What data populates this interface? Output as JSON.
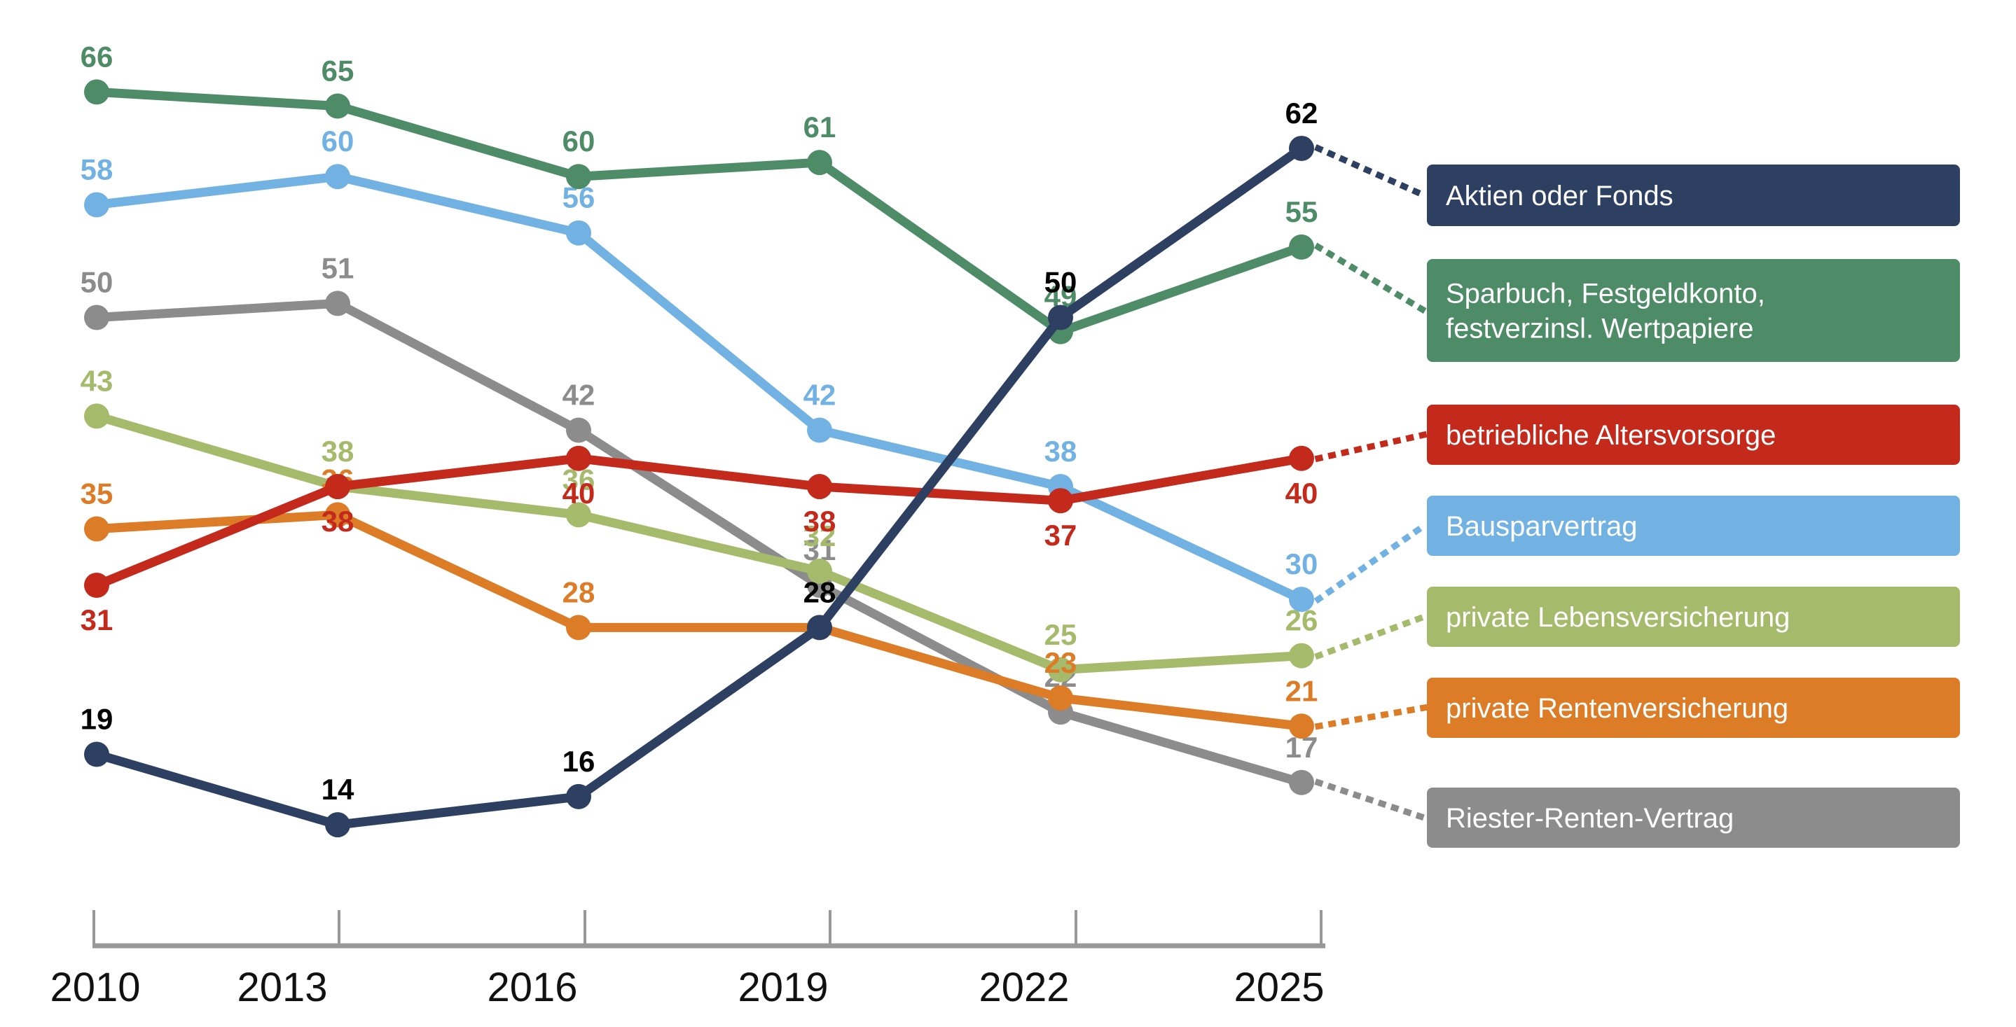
{
  "background": "#ffffff",
  "axis": {
    "years": [
      "2010",
      "2013",
      "2016",
      "2019",
      "2022",
      "2025"
    ],
    "line_color": "#989898",
    "label_color": "#111111"
  },
  "chart_data": {
    "type": "line",
    "x_categories": [
      "2010",
      "2013",
      "2016",
      "2019",
      "2022",
      "2025"
    ],
    "ylim": [
      0,
      72
    ],
    "grid": false,
    "legend_position": "right",
    "series": [
      {
        "id": "aktien",
        "name": "Aktien oder Fonds",
        "legend_lines": [
          "Aktien oder Fonds"
        ],
        "color": "#2e4062",
        "value_label_color": "#000000",
        "values": [
          19,
          14,
          16,
          28,
          50,
          62
        ],
        "value_label_position": "above",
        "hidden_value_labels": []
      },
      {
        "id": "sparbuch",
        "name": "Sparbuch, Festgeldkonto, festverzinsl. Wertpapiere",
        "legend_lines": [
          "Sparbuch, Festgeldkonto,",
          "festverzinsl. Wertpapiere"
        ],
        "color": "#4e8b67",
        "value_label_color": "#4e8b67",
        "values": [
          66,
          65,
          60,
          61,
          49,
          55
        ],
        "value_label_position": "above",
        "hidden_value_labels": []
      },
      {
        "id": "betriebliche",
        "name": "betriebliche Altersvorsorge",
        "legend_lines": [
          "betriebliche Altersvorsorge"
        ],
        "color": "#c42a1c",
        "value_label_color": "#c42a1c",
        "values": [
          31,
          38,
          40,
          38,
          37,
          40
        ],
        "value_label_position": "below",
        "hidden_value_labels": []
      },
      {
        "id": "bauspar",
        "name": "Bausparvertrag",
        "legend_lines": [
          "Bausparvertrag"
        ],
        "color": "#72b2e3",
        "value_label_color": "#72b2e3",
        "values": [
          58,
          60,
          56,
          42,
          38,
          30
        ],
        "value_label_position": "above",
        "hidden_value_labels": []
      },
      {
        "id": "lebensversicherung",
        "name": "private Lebensversicherung",
        "legend_lines": [
          "private Lebensversicherung"
        ],
        "color": "#a6ba6c",
        "value_label_color": "#a6ba6c",
        "values": [
          43,
          38,
          36,
          32,
          25,
          26
        ],
        "value_label_position": "above",
        "hidden_value_labels": []
      },
      {
        "id": "rentenversicherung",
        "name": "private Rentenversicherung",
        "legend_lines": [
          "private Rentenversicherung"
        ],
        "color": "#dc7c26",
        "value_label_color": "#dc7c26",
        "values": [
          35,
          36,
          28,
          28,
          23,
          21
        ],
        "value_label_position": "above",
        "hidden_value_labels": [
          3
        ]
      },
      {
        "id": "riester",
        "name": "Riester-Renten-Vertrag",
        "legend_lines": [
          "Riester-Renten-Vertrag"
        ],
        "color": "#8c8c8c",
        "value_label_color": "#8c8c8c",
        "values": [
          50,
          51,
          42,
          31,
          22,
          17
        ],
        "value_label_position": "above",
        "hidden_value_labels": []
      }
    ],
    "draw_order": [
      "riester",
      "lebensversicherung",
      "bauspar",
      "rentenversicherung",
      "betriebliche",
      "sparbuch",
      "aktien"
    ]
  }
}
